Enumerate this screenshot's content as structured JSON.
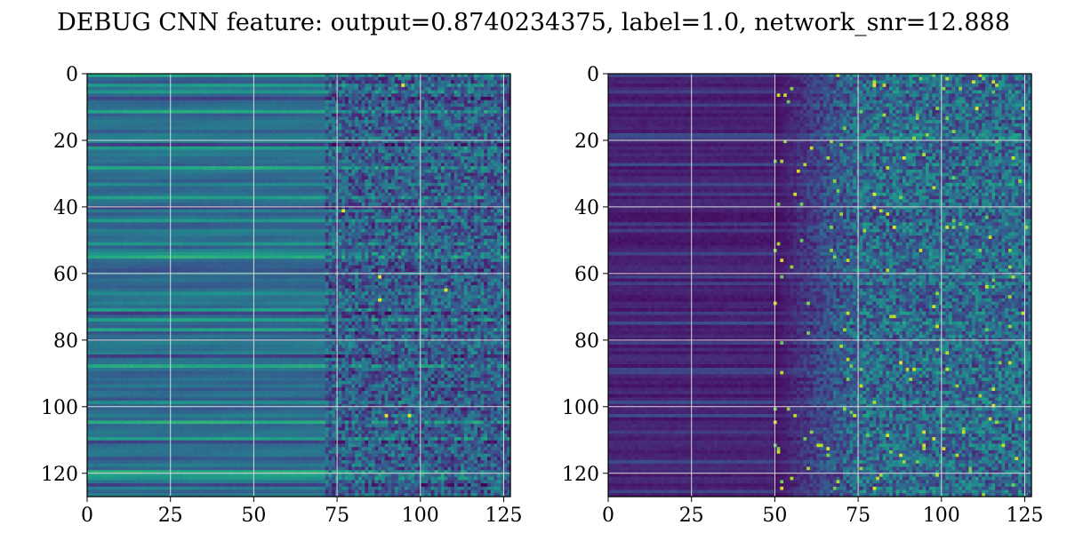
{
  "title": "DEBUG CNN feature: output=0.8740234375, label=1.0, network_snr=12.888",
  "chart_data": [
    {
      "type": "heatmap",
      "title": "",
      "xlabel": "",
      "ylabel": "",
      "colormap": "viridis",
      "grid": true,
      "xlim": [
        0,
        127
      ],
      "ylim": [
        127,
        0
      ],
      "rows": 128,
      "cols": 128,
      "xticks": [
        0,
        25,
        50,
        75,
        100,
        125
      ],
      "yticks": [
        0,
        20,
        40,
        60,
        80,
        100,
        120
      ],
      "xtick_labels": [
        "0",
        "25",
        "50",
        "75",
        "100",
        "125"
      ],
      "ytick_labels": [
        "0",
        "20",
        "40",
        "60",
        "80",
        "100",
        "120"
      ],
      "description": "feature map: smooth horizontal teal/green bands for columns 0-75, noisy speckled texture for columns 75-127 with bright yellow spots near rows 3, 41, 61, 65, 68, 103",
      "bright_spots": [
        [
          3,
          95
        ],
        [
          41,
          77
        ],
        [
          61,
          88
        ],
        [
          65,
          108
        ],
        [
          68,
          88
        ],
        [
          103,
          90
        ],
        [
          103,
          97
        ]
      ]
    },
    {
      "type": "heatmap",
      "title": "",
      "xlabel": "",
      "ylabel": "",
      "colormap": "viridis",
      "grid": true,
      "xlim": [
        0,
        127
      ],
      "ylim": [
        127,
        0
      ],
      "rows": 128,
      "cols": 128,
      "xticks": [
        0,
        25,
        50,
        75,
        100,
        125
      ],
      "yticks": [
        0,
        20,
        40,
        60,
        80,
        100,
        120
      ],
      "xtick_labels": [
        "0",
        "25",
        "50",
        "75",
        "100",
        "125"
      ],
      "ytick_labels": [
        "0",
        "20",
        "40",
        "60",
        "80",
        "100",
        "120"
      ],
      "description": "feature map: dark purple for columns 0-50, noisy blue/teal speckle for columns 50-127 with yellow spots",
      "bright_spots": [
        [
          3,
          80
        ],
        [
          10,
          111
        ],
        [
          25,
          89
        ],
        [
          36,
          80
        ],
        [
          40,
          80
        ],
        [
          46,
          86
        ],
        [
          87,
          88
        ],
        [
          115,
          88
        ],
        [
          125,
          80
        ]
      ]
    }
  ]
}
